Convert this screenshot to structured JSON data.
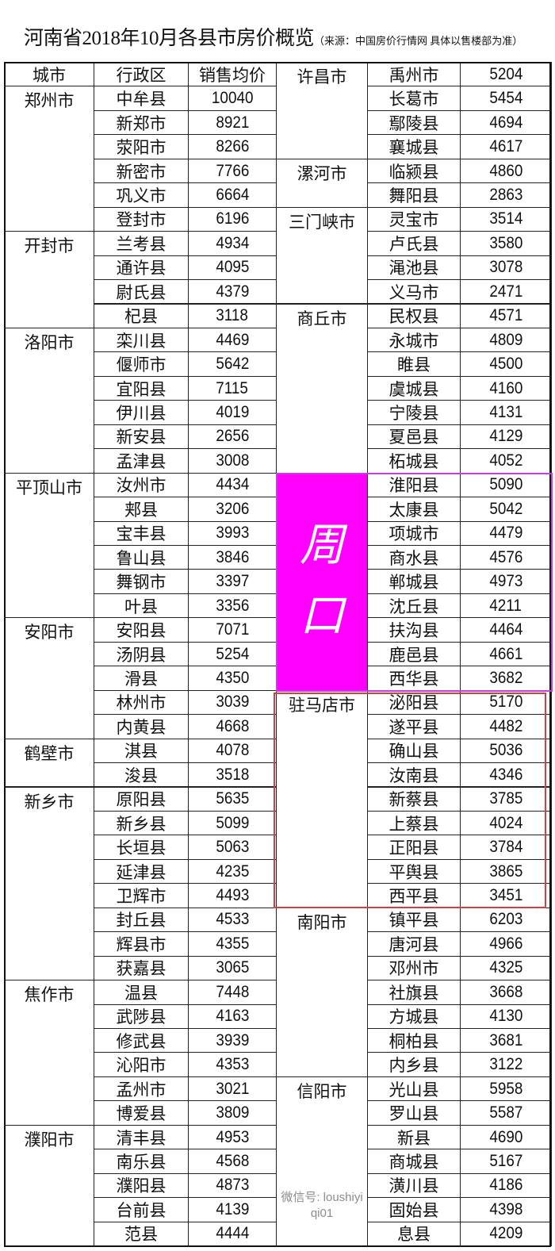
{
  "title": "河南省2018年10月各县市房价概览",
  "source": "（来源：中国房价行情网 具体以售楼部为准）",
  "headers": [
    "城市",
    "行政区",
    "销售均价"
  ],
  "highlight_colors": {
    "zhoukou_fill": "#ff00ff",
    "zhoukou_border": "#c040e0",
    "zhumadian_border": "#d04040"
  },
  "left_groups": [
    {
      "city": "郑州市",
      "items": [
        [
          "中牟县",
          "10040"
        ],
        [
          "新郑市",
          "8921"
        ],
        [
          "荥阳市",
          "8266"
        ],
        [
          "新密市",
          "7766"
        ],
        [
          "巩义市",
          "6664"
        ],
        [
          "登封市",
          "6196"
        ]
      ]
    },
    {
      "city": "开封市",
      "items": [
        [
          "兰考县",
          "4934"
        ],
        [
          "通许县",
          "4095"
        ],
        [
          "尉氏县",
          "4379"
        ],
        [
          "杞县",
          "3118"
        ]
      ]
    },
    {
      "city": "洛阳市",
      "items": [
        [
          "栾川县",
          "4469"
        ],
        [
          "偃师市",
          "5642"
        ],
        [
          "宜阳县",
          "7115"
        ],
        [
          "伊川县",
          "4019"
        ],
        [
          "新安县",
          "2656"
        ],
        [
          "孟津县",
          "3008"
        ]
      ]
    },
    {
      "city": "平顶山市",
      "items": [
        [
          "汝州市",
          "4434"
        ],
        [
          "郏县",
          "3206"
        ],
        [
          "宝丰县",
          "3993"
        ],
        [
          "鲁山县",
          "3846"
        ],
        [
          "舞钢市",
          "3397"
        ],
        [
          "叶县",
          "3356"
        ]
      ]
    },
    {
      "city": "安阳市",
      "items": [
        [
          "安阳县",
          "7071"
        ],
        [
          "汤阴县",
          "5254"
        ],
        [
          "滑县",
          "4350"
        ],
        [
          "林州市",
          "3039"
        ],
        [
          "内黄县",
          "4668"
        ]
      ]
    },
    {
      "city": "鹤壁市",
      "items": [
        [
          "淇县",
          "4078"
        ],
        [
          "浚县",
          "3518"
        ]
      ]
    },
    {
      "city": "新乡市",
      "items": [
        [
          "原阳县",
          "5635"
        ],
        [
          "新乡县",
          "5099"
        ],
        [
          "长垣县",
          "5063"
        ],
        [
          "延津县",
          "4235"
        ],
        [
          "卫辉市",
          "4493"
        ],
        [
          "封丘县",
          "4533"
        ],
        [
          "辉县市",
          "4355"
        ],
        [
          "获嘉县",
          "3065"
        ]
      ]
    },
    {
      "city": "焦作市",
      "items": [
        [
          "温县",
          "7448"
        ],
        [
          "武陟县",
          "4163"
        ],
        [
          "修武县",
          "3939"
        ],
        [
          "沁阳市",
          "4353"
        ],
        [
          "孟州市",
          "3021"
        ],
        [
          "博爱县",
          "3809"
        ]
      ]
    },
    {
      "city": "濮阳市",
      "items": [
        [
          "清丰县",
          "4953"
        ],
        [
          "南乐县",
          "4568"
        ],
        [
          "濮阳县",
          "4873"
        ],
        [
          "台前县",
          "4139"
        ],
        [
          "范县",
          "4444"
        ]
      ]
    }
  ],
  "right_groups": [
    {
      "city": "许昌市",
      "items": [
        [
          "禹州市",
          "5204"
        ],
        [
          "长葛市",
          "5454"
        ],
        [
          "鄢陵县",
          "4694"
        ],
        [
          "襄城县",
          "4617"
        ]
      ]
    },
    {
      "city": "漯河市",
      "items": [
        [
          "临颍县",
          "4860"
        ],
        [
          "舞阳县",
          "2863"
        ]
      ]
    },
    {
      "city": "三门峡市",
      "items": [
        [
          "灵宝市",
          "3514"
        ],
        [
          "卢氏县",
          "3580"
        ],
        [
          "渑池县",
          "3078"
        ],
        [
          "义马市",
          "2471"
        ]
      ]
    },
    {
      "city": "商丘市",
      "items": [
        [
          "民权县",
          "4571"
        ],
        [
          "永城市",
          "4809"
        ],
        [
          "睢县",
          "4500"
        ],
        [
          "虞城县",
          "4160"
        ],
        [
          "宁陵县",
          "4131"
        ],
        [
          "夏邑县",
          "4129"
        ],
        [
          "柘城县",
          "4052"
        ]
      ]
    },
    {
      "city": "周口",
      "items": [
        [
          "淮阳县",
          "5090"
        ],
        [
          "太康县",
          "5042"
        ],
        [
          "项城市",
          "4479"
        ],
        [
          "商水县",
          "4576"
        ],
        [
          "郸城县",
          "4973"
        ],
        [
          "沈丘县",
          "4211"
        ],
        [
          "扶沟县",
          "4464"
        ],
        [
          "鹿邑县",
          "4661"
        ],
        [
          "西华县",
          "3682"
        ]
      ]
    },
    {
      "city": "驻马店市",
      "items": [
        [
          "泌阳县",
          "5170"
        ],
        [
          "遂平县",
          "4482"
        ],
        [
          "确山县",
          "5036"
        ],
        [
          "汝南县",
          "4346"
        ],
        [
          "新蔡县",
          "3785"
        ],
        [
          "上蔡县",
          "4024"
        ],
        [
          "正阳县",
          "3784"
        ],
        [
          "平舆县",
          "3865"
        ],
        [
          "西平县",
          "3451"
        ]
      ]
    },
    {
      "city": "南阳市",
      "items": [
        [
          "镇平县",
          "6203"
        ],
        [
          "唐河县",
          "4966"
        ],
        [
          "邓州市",
          "4325"
        ],
        [
          "社旗县",
          "3668"
        ],
        [
          "方城县",
          "4130"
        ],
        [
          "桐柏县",
          "3681"
        ],
        [
          "内乡县",
          "3122"
        ]
      ]
    },
    {
      "city": "信阳市",
      "items": [
        [
          "光山县",
          "5958"
        ],
        [
          "罗山县",
          "5587"
        ],
        [
          "新县",
          "4690"
        ],
        [
          "商城县",
          "5167"
        ],
        [
          "潢川县",
          "4186"
        ],
        [
          "固始县",
          "4398"
        ],
        [
          "息县",
          "4209"
        ]
      ]
    }
  ],
  "watermark": "微信号: loushiyiqi01"
}
